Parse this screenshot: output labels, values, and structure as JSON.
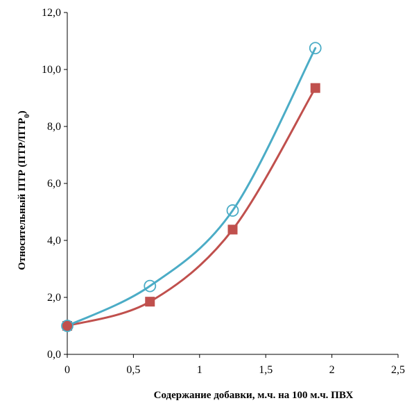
{
  "chart_data": {
    "type": "scatter",
    "title": "",
    "xlabel": "Содержание добавки, м.ч. на 100 м.ч. ПВХ",
    "ylabel_parts": [
      "Относительный ПТР (ПТР/ПТР",
      "0",
      ")"
    ],
    "xlim": [
      0,
      2.5
    ],
    "ylim": [
      0,
      12
    ],
    "x_ticks": [
      "0",
      "0,5",
      "1",
      "1,5",
      "2",
      "2,5"
    ],
    "y_ticks": [
      "0,0",
      "2,0",
      "4,0",
      "6,0",
      "8,0",
      "10,0",
      "12,0"
    ],
    "grid": false,
    "legend": "none",
    "smooth": true,
    "series": [
      {
        "marker": "open-circle",
        "color": "#4BACC6",
        "x": [
          0,
          0.625,
          1.25,
          1.875
        ],
        "y": [
          1.0,
          2.4,
          5.05,
          10.75
        ]
      },
      {
        "marker": "filled-square",
        "color": "#C0504D",
        "x": [
          0,
          0.625,
          1.25,
          1.875
        ],
        "y": [
          1.0,
          1.85,
          4.38,
          9.35
        ]
      }
    ]
  }
}
